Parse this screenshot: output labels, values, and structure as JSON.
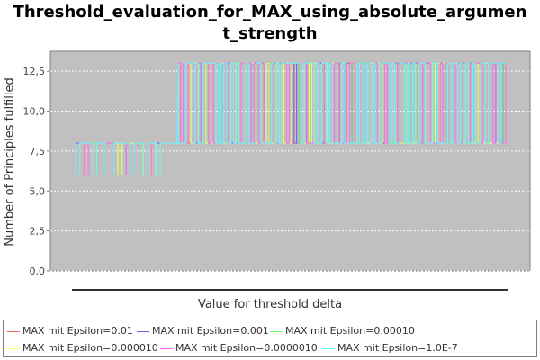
{
  "chart_data": {
    "type": "line",
    "title_lines": [
      "Threshold_evaluation_for_MAX_using_absolute_argumen",
      "t_strength"
    ],
    "xlabel": "Value for threshold delta",
    "ylabel": "Number of Principles fulfilled",
    "ylim": [
      0,
      13.75
    ],
    "yticks": [
      "0,0",
      "2,5",
      "5,0",
      "7,5",
      "10,0",
      "12,5"
    ],
    "ytick_values": [
      0,
      2.5,
      5,
      7.5,
      10,
      12.5
    ],
    "background": "#c0c0c0",
    "grid": true,
    "legend_position": "bottom",
    "segments": [
      {
        "low": 6,
        "high": 8,
        "transitions": 60
      },
      {
        "low": 8,
        "high": 13,
        "transitions": 260
      }
    ],
    "series": [
      {
        "name": "MAX mit Epsilon=0.01",
        "color": "#ff6060"
      },
      {
        "name": "MAX mit Epsilon=0.001",
        "color": "#6060ff"
      },
      {
        "name": "MAX mit Epsilon=0.00010",
        "color": "#60ff60"
      },
      {
        "name": "MAX mit Epsilon=0.000010",
        "color": "#ffff60"
      },
      {
        "name": "MAX mit Epsilon=0.0000010",
        "color": "#ff60ff"
      },
      {
        "name": "MAX mit Epsilon=1.0E-7",
        "color": "#60ffff"
      }
    ]
  }
}
